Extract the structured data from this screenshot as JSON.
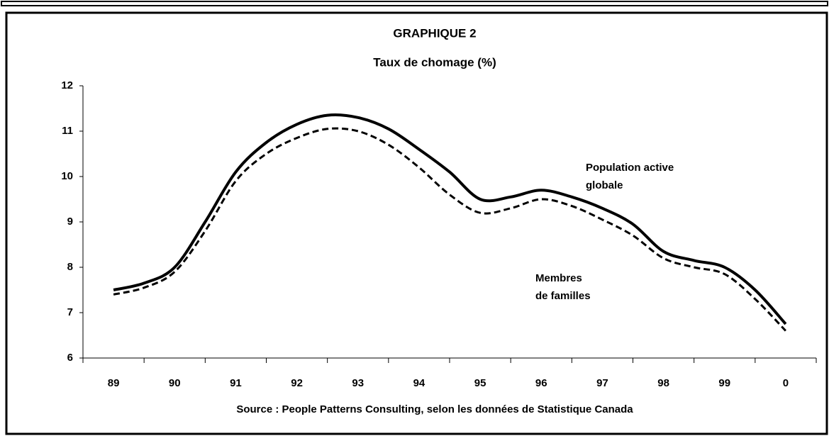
{
  "chart_data": {
    "type": "line",
    "title": "GRAPHIQUE 2",
    "subtitle": "Taux de chomage (%)",
    "source": "Source : People Patterns Consulting, selon les données de Statistique Canada",
    "x": [
      89,
      89.5,
      90,
      90.5,
      91,
      91.5,
      92,
      92.5,
      93,
      93.5,
      94,
      94.5,
      95,
      95.5,
      96,
      96.5,
      97,
      97.5,
      98,
      98.5,
      99,
      99.5,
      100
    ],
    "series": [
      {
        "name": "Population active\nglobale",
        "color": "#000000",
        "dash": false,
        "values": [
          7.5,
          7.65,
          8.0,
          9.0,
          10.1,
          10.75,
          11.15,
          11.35,
          11.3,
          11.05,
          10.6,
          10.1,
          9.5,
          9.55,
          9.7,
          9.55,
          9.3,
          8.95,
          8.35,
          8.15,
          8.0,
          7.5,
          6.75
        ]
      },
      {
        "name": "Membres\nde familles",
        "color": "#000000",
        "dash": true,
        "values": [
          7.4,
          7.55,
          7.9,
          8.8,
          9.9,
          10.5,
          10.85,
          11.05,
          11.0,
          10.7,
          10.2,
          9.6,
          9.2,
          9.3,
          9.5,
          9.35,
          9.05,
          8.7,
          8.2,
          8.0,
          7.85,
          7.3,
          6.6
        ]
      }
    ],
    "xlim": [
      88.5,
      100.5
    ],
    "xticks": [
      89,
      90,
      91,
      92,
      93,
      94,
      95,
      96,
      97,
      98,
      99,
      {
        "value": 100,
        "label": "0"
      }
    ],
    "ylim": [
      6,
      12
    ],
    "yticks": [
      6,
      7,
      8,
      9,
      10,
      11,
      12
    ],
    "grid": false
  }
}
